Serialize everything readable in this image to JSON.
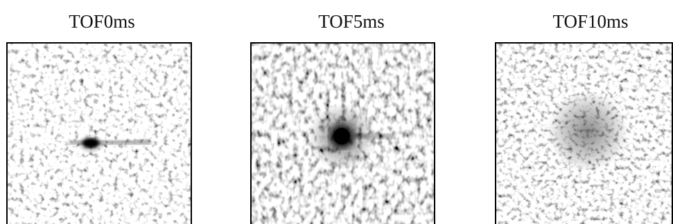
{
  "panels": [
    {
      "title": "TOF0ms"
    },
    {
      "title": "TOF5ms"
    },
    {
      "title": "TOF10ms"
    }
  ]
}
